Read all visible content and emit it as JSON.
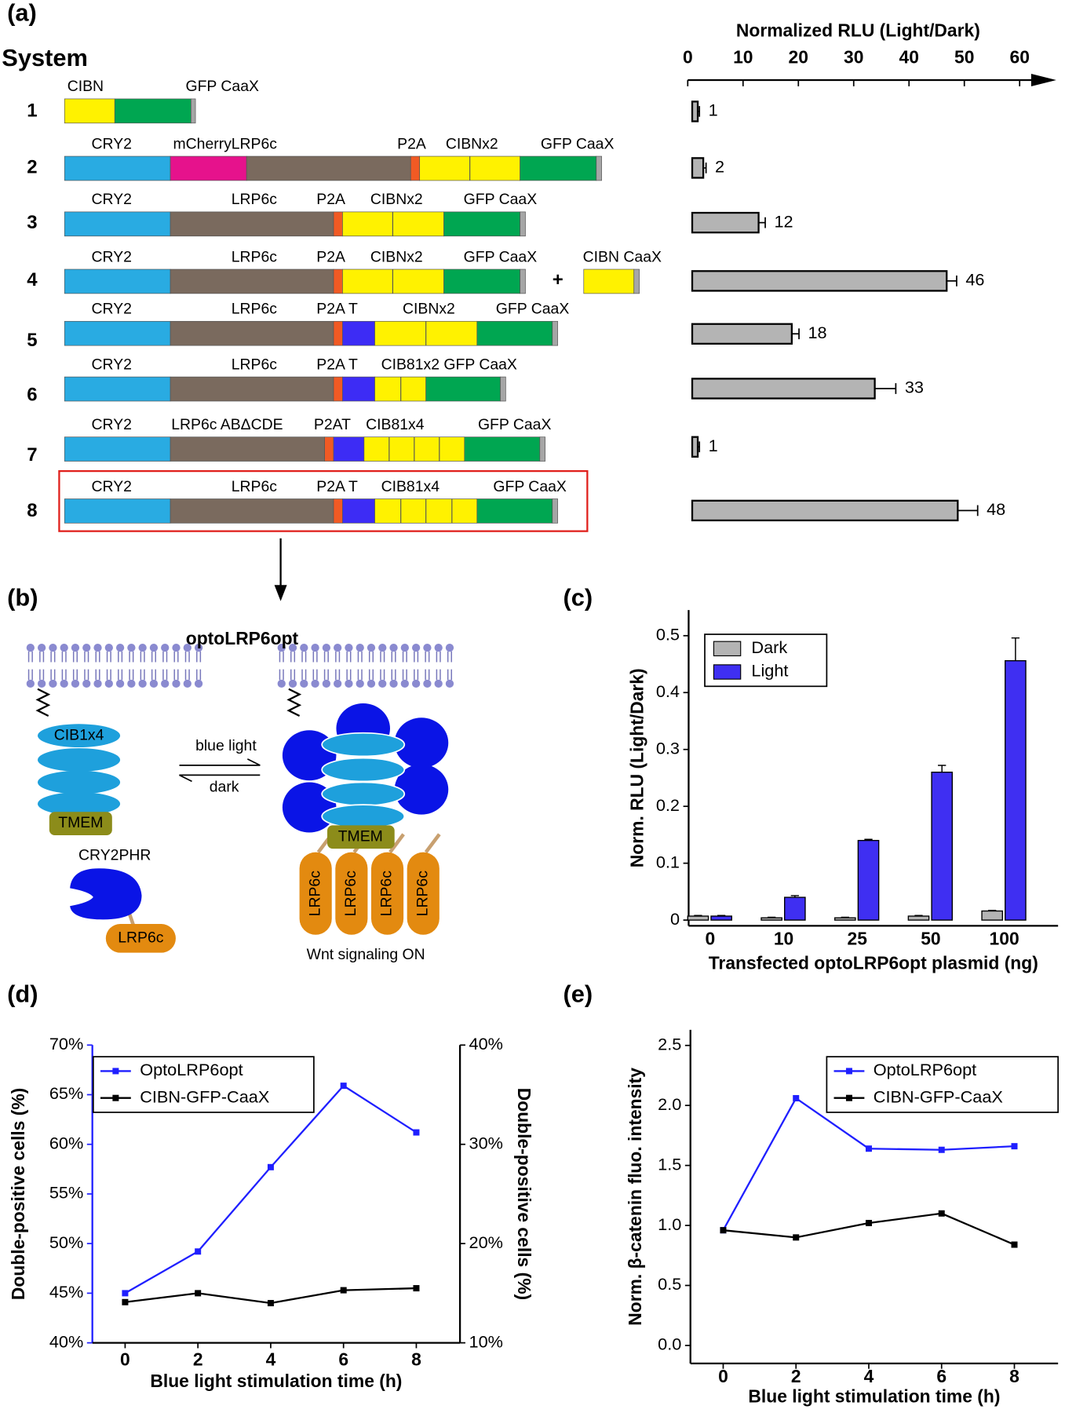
{
  "panel_labels": [
    "(a)",
    "(b)",
    "(c)",
    "(d)",
    "(e)"
  ],
  "constructs": {
    "heading": "System",
    "rows": [
      {
        "labels": [
          "CIBN",
          "GFP CaaX"
        ]
      },
      {
        "labels": [
          "CRY2",
          "mCherry",
          "LRP6c",
          "P2A",
          "CIBNx2",
          "GFP CaaX"
        ]
      },
      {
        "labels": [
          "CRY2",
          "LRP6c",
          "P2A",
          "CIBNx2",
          "GFP CaaX"
        ]
      },
      {
        "labels": [
          "CRY2",
          "LRP6c",
          "P2A",
          "CIBNx2",
          "GFP CaaX",
          "+",
          "CIBN CaaX"
        ]
      },
      {
        "labels": [
          "CRY2",
          "LRP6c",
          "P2A T",
          "CIBNx2",
          "GFP CaaX"
        ]
      },
      {
        "labels": [
          "CRY2",
          "LRP6c",
          "P2A T",
          "CIB81x2 GFP  CaaX"
        ]
      },
      {
        "labels": [
          "CRY2",
          "LRP6c ABΔCDE",
          "P2AT",
          "CIB81x4",
          "GFP CaaX"
        ]
      },
      {
        "labels": [
          "CRY2",
          "LRP6c",
          "P2A  T",
          "CIB81x4",
          "GFP CaaX"
        ]
      }
    ]
  },
  "diagram": {
    "title": "optoLRP6opt",
    "cib_label": "CIB1x4",
    "light_label": "blue light",
    "dark_label": "dark",
    "tmem_label": "TMEM",
    "cry_label": "CRY2PHR",
    "lrp_label": "LRP6c",
    "output_label": "Wnt signaling ON"
  },
  "chart_data": [
    {
      "type": "bar",
      "orientation": "horizontal",
      "title": "Normalized RLU (Light/Dark)",
      "categories": [
        "1",
        "2",
        "3",
        "4",
        "5",
        "6",
        "7",
        "8"
      ],
      "values": [
        1,
        2,
        12,
        46,
        18,
        33,
        1,
        48
      ],
      "errors": [
        0.3,
        0.5,
        1.2,
        1.8,
        1.3,
        3.8,
        0.3,
        3.6
      ],
      "color": "#b4b4b4",
      "xlim": [
        0,
        65
      ],
      "xticks": [
        0,
        10,
        20,
        30,
        40,
        50,
        60
      ]
    },
    {
      "type": "bar",
      "categories": [
        "0",
        "10",
        "25",
        "50",
        "100"
      ],
      "series": [
        {
          "name": "Dark",
          "color": "#b4b4b4",
          "values": [
            0.007,
            0.004,
            0.004,
            0.007,
            0.016
          ],
          "errors": [
            0.001,
            0.001,
            0.001,
            0.001,
            0.001
          ]
        },
        {
          "name": "Light",
          "color": "#3f2ff2",
          "values": [
            0.007,
            0.04,
            0.14,
            0.26,
            0.456
          ],
          "errors": [
            0.001,
            0.003,
            0.002,
            0.012,
            0.04
          ]
        }
      ],
      "ylim": [
        -0.01,
        0.545
      ],
      "yticks": [
        0,
        0.1,
        0.2,
        0.3,
        0.4,
        0.5
      ],
      "ylabel": "Norm. RLU (Light/Dark)",
      "xlabel": "Transfected optoLRP6opt plasmid (ng)",
      "legend": "upper left"
    },
    {
      "type": "line",
      "x": [
        0,
        2,
        4,
        6,
        8
      ],
      "xlim": [
        -0.9,
        9.2
      ],
      "xticks": [
        0,
        2,
        4,
        6,
        8
      ],
      "series": [
        {
          "name": "OptoLRP6opt",
          "color": "#1f1fff",
          "axis": "y",
          "values": [
            45,
            49.2,
            57.7,
            65.9,
            61.2
          ]
        },
        {
          "name": "CIBN-GFP-CaaX",
          "color": "#000000",
          "axis": "y2",
          "values": [
            14.1,
            15.0,
            14.0,
            15.3,
            15.5
          ]
        }
      ],
      "ylim": [
        40,
        70
      ],
      "yticks": [
        {
          "value": 40,
          "label": "40%"
        },
        {
          "value": 45,
          "label": "45%"
        },
        {
          "value": 50,
          "label": "50%"
        },
        {
          "value": 55,
          "label": "55%"
        },
        {
          "value": 60,
          "label": "60%"
        },
        {
          "value": 65,
          "label": "65%"
        },
        {
          "value": 70,
          "label": "70%"
        }
      ],
      "y2lim": [
        10,
        40
      ],
      "y2ticks": [
        {
          "value": 10,
          "label": "10%"
        },
        {
          "value": 20,
          "label": "20%"
        },
        {
          "value": 30,
          "label": "30%"
        },
        {
          "value": 40,
          "label": "40%"
        }
      ],
      "ylabel": "Double-positive cells (%)",
      "y2label": "Double-positive cells (%)",
      "yaxis_color": "#1f1fff",
      "xlabel": "Blue light stimulation time (h)",
      "legend": "upper left"
    },
    {
      "type": "line",
      "x": [
        0,
        2,
        4,
        6,
        8
      ],
      "xlim": [
        -0.9,
        9.2
      ],
      "xticks": [
        0,
        2,
        4,
        6,
        8
      ],
      "series": [
        {
          "name": "OptoLRP6opt",
          "color": "#1f1fff",
          "values": [
            0.96,
            2.06,
            1.64,
            1.63,
            1.66
          ]
        },
        {
          "name": "CIBN-GFP-CaaX",
          "color": "#000000",
          "values": [
            0.96,
            0.9,
            1.02,
            1.1,
            0.84
          ]
        }
      ],
      "ylim": [
        -0.15,
        2.63
      ],
      "yticks": [
        {
          "value": 0,
          "label": "0.0"
        },
        0.5,
        {
          "value": 1,
          "label": "1.0"
        },
        1.5,
        {
          "value": 2,
          "label": "2.0"
        },
        2.5
      ],
      "ylabel": "Norm. β-catenin fluo. intensity",
      "xlabel": "Blue light stimulation time (h)",
      "legend": "upper right"
    }
  ]
}
